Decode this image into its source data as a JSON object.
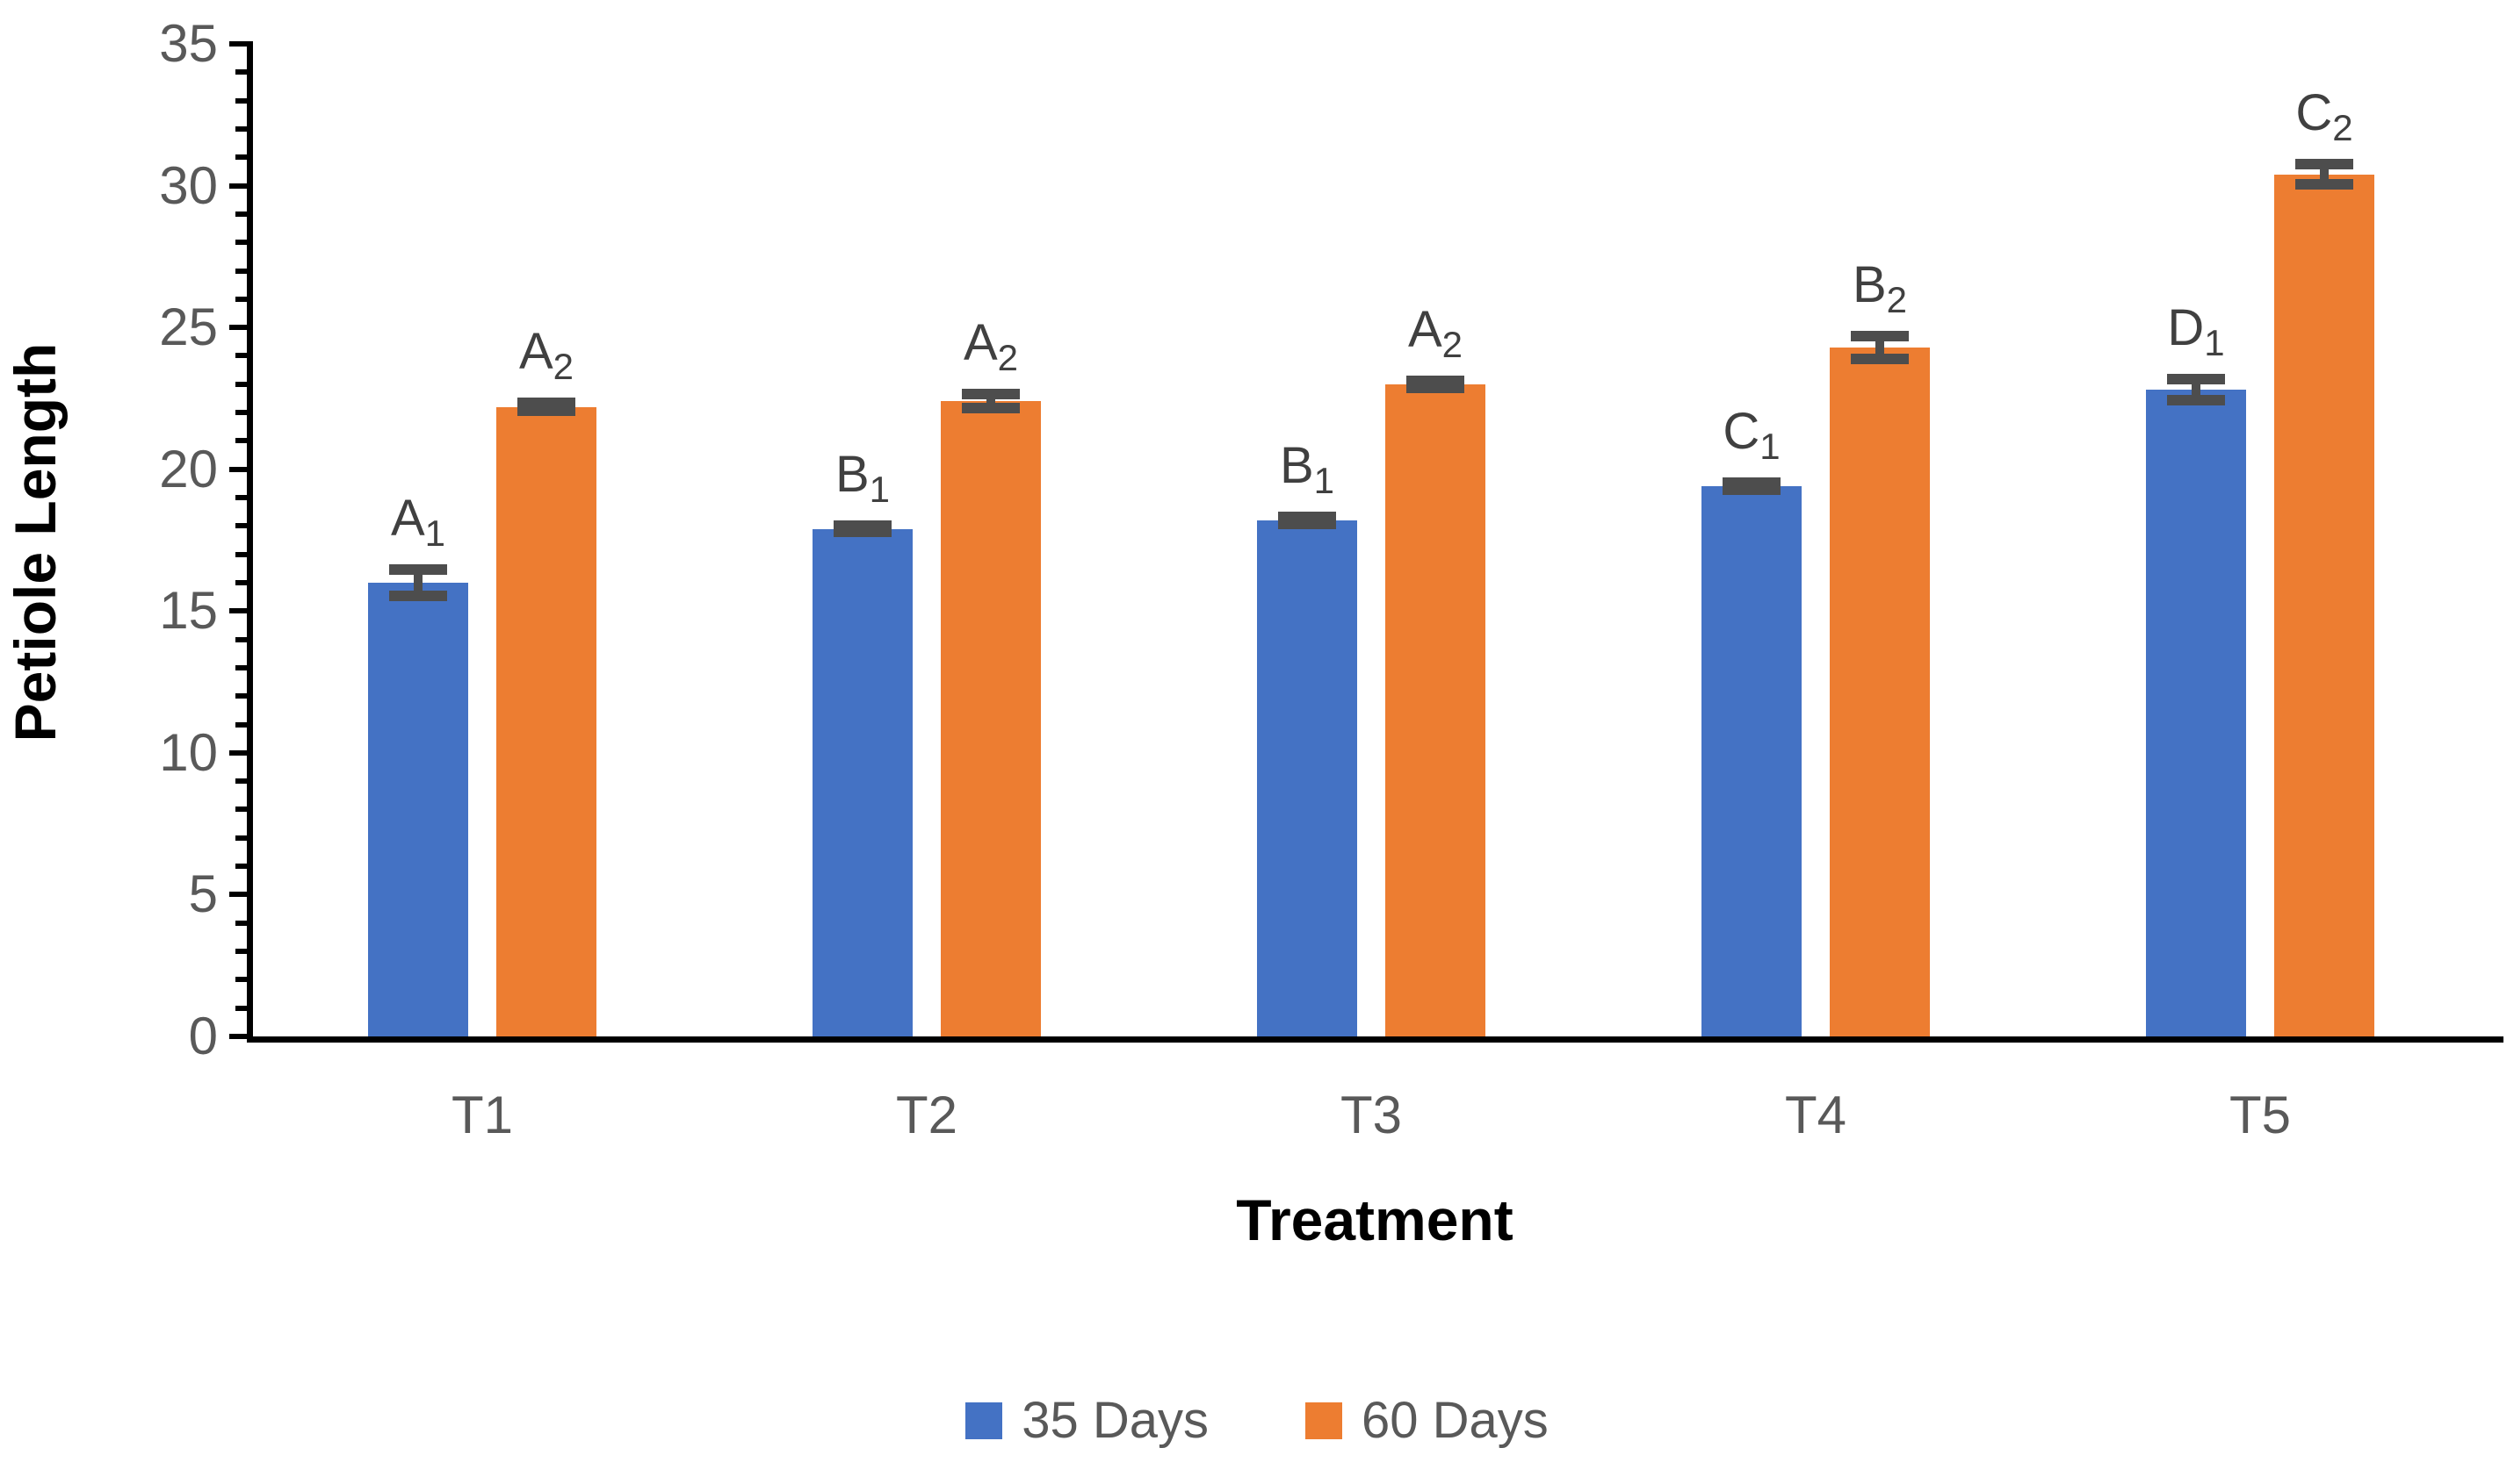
{
  "chart_data": {
    "type": "bar",
    "title": "",
    "xlabel": "Treatment",
    "ylabel": "Petiole Length",
    "ylim": [
      0,
      35
    ],
    "ytick_major_step": 5,
    "ytick_minor_step": 1,
    "ytick_labels": [
      "0",
      "5",
      "10",
      "15",
      "20",
      "25",
      "30",
      "35"
    ],
    "grid": false,
    "legend_position": "bottom",
    "categories": [
      "T1",
      "T2",
      "T3",
      "T4",
      "T5"
    ],
    "series": [
      {
        "name": "35 Days",
        "color": "#4472C4",
        "values": [
          16.0,
          17.9,
          18.2,
          19.4,
          22.8
        ],
        "errors": [
          0.45,
          0.12,
          0.12,
          0.12,
          0.37
        ],
        "point_labels": [
          {
            "base": "A",
            "sub": "1"
          },
          {
            "base": "B",
            "sub": "1"
          },
          {
            "base": "B",
            "sub": "1"
          },
          {
            "base": "C",
            "sub": "1"
          },
          {
            "base": "D",
            "sub": "1"
          }
        ]
      },
      {
        "name": "60 Days",
        "color": "#ED7D31",
        "values": [
          22.2,
          22.4,
          23.0,
          24.3,
          30.4
        ],
        "errors": [
          0.15,
          0.25,
          0.12,
          0.4,
          0.35
        ],
        "point_labels": [
          {
            "base": "A",
            "sub": "2"
          },
          {
            "base": "A",
            "sub": "2"
          },
          {
            "base": "A",
            "sub": "2"
          },
          {
            "base": "B",
            "sub": "2"
          },
          {
            "base": "C",
            "sub": "2"
          }
        ]
      }
    ],
    "colors": {
      "axis": "#000000",
      "tick_text": "#595959",
      "error_bar": "#4d4d4d",
      "point_label_text": "#404040"
    }
  }
}
